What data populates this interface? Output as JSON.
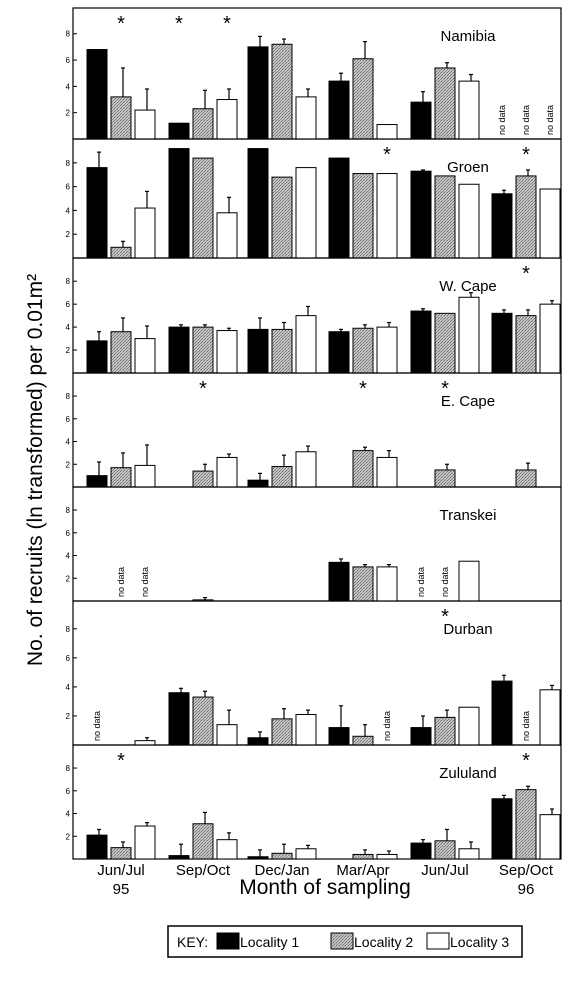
{
  "chart_data": {
    "type": "bar",
    "y_axis_label": "No. of recruits (ln transformed) per 0.01m²",
    "x_axis_label": "Month of sampling",
    "month_labels": [
      {
        "line1": "Jun/Jul",
        "line2": "95"
      },
      {
        "line1": "Sep/Oct",
        "line2": ""
      },
      {
        "line1": "Dec/Jan",
        "line2": ""
      },
      {
        "line1": "Mar/Apr",
        "line2": ""
      },
      {
        "line1": "Jun/Jul",
        "line2": ""
      },
      {
        "line1": "Sep/Oct",
        "line2": "96"
      }
    ],
    "y_ticks": [
      2,
      4,
      6,
      8
    ],
    "ylim": [
      0,
      9.5
    ],
    "no_data_label": "no data",
    "star_label": "*",
    "series": [
      {
        "name": "Locality 1",
        "color": "#000000"
      },
      {
        "name": "Locality 2",
        "color": "#b0b0b0"
      },
      {
        "name": "Locality 3",
        "color": "#ffffff"
      }
    ],
    "panels": [
      {
        "name": "Namibia",
        "values": [
          [
            6.8,
            3.2,
            2.2
          ],
          [
            1.2,
            2.3,
            3.0
          ],
          [
            7.0,
            7.2,
            3.2
          ],
          [
            4.4,
            6.1,
            1.1
          ],
          [
            2.8,
            5.4,
            4.4
          ],
          [
            null,
            null,
            null
          ]
        ],
        "errors": [
          [
            0,
            2.2,
            1.6
          ],
          [
            0,
            1.4,
            0.8
          ],
          [
            0.8,
            0.4,
            0.6
          ],
          [
            0.6,
            1.3,
            0
          ],
          [
            0.8,
            0.4,
            0.5
          ],
          [
            0,
            0,
            0
          ]
        ],
        "stars": [
          1,
          3,
          5
        ],
        "no_data": [
          [
            5,
            0
          ],
          [
            5,
            1
          ],
          [
            5,
            2
          ]
        ]
      },
      {
        "name": "Groen",
        "values": [
          [
            7.6,
            0.9,
            4.2
          ],
          [
            9.2,
            8.4,
            3.8
          ],
          [
            9.2,
            6.8,
            7.6
          ],
          [
            8.4,
            7.1,
            7.1
          ],
          [
            7.3,
            6.9,
            6.2
          ],
          [
            5.4,
            6.9,
            5.8
          ]
        ],
        "errors": [
          [
            1.3,
            0.5,
            1.4
          ],
          [
            0,
            0,
            1.3
          ],
          [
            0,
            0,
            0
          ],
          [
            0,
            0,
            0
          ],
          [
            0.1,
            0,
            0
          ],
          [
            0.3,
            0.5,
            0
          ]
        ],
        "stars": [
          11,
          16
        ],
        "no_data": []
      },
      {
        "name": "W. Cape",
        "values": [
          [
            2.8,
            3.6,
            3.0
          ],
          [
            4.0,
            4.0,
            3.7
          ],
          [
            3.8,
            3.8,
            5.0
          ],
          [
            3.6,
            3.9,
            4.0
          ],
          [
            5.4,
            5.2,
            6.6
          ],
          [
            5.2,
            5.0,
            6.0
          ]
        ],
        "errors": [
          [
            0.8,
            1.2,
            1.1
          ],
          [
            0.2,
            0.2,
            0.2
          ],
          [
            1.0,
            0.6,
            0.8
          ],
          [
            0.2,
            0.3,
            0.4
          ],
          [
            0.2,
            0,
            0.4
          ],
          [
            0.3,
            0.5,
            0.3
          ]
        ],
        "stars": [
          16
        ],
        "no_data": []
      },
      {
        "name": "E. Cape",
        "values": [
          [
            1.0,
            1.7,
            1.9
          ],
          [
            null,
            1.4,
            2.6
          ],
          [
            0.6,
            1.8,
            3.1
          ],
          [
            null,
            3.2,
            2.6
          ],
          [
            null,
            1.5,
            null
          ],
          [
            null,
            1.5,
            null
          ]
        ],
        "errors": [
          [
            1.2,
            1.3,
            1.8
          ],
          [
            0,
            0.6,
            0.3
          ],
          [
            0.6,
            1.0,
            0.5
          ],
          [
            0,
            0.3,
            0.6
          ],
          [
            0,
            0.5,
            0
          ],
          [
            0,
            0.6,
            0
          ]
        ],
        "stars": [
          4,
          10,
          13
        ],
        "no_data": []
      },
      {
        "name": "Transkei",
        "values": [
          [
            null,
            null,
            null
          ],
          [
            null,
            0.1,
            null
          ],
          [
            null,
            null,
            null
          ],
          [
            3.4,
            3.0,
            3.0
          ],
          [
            null,
            null,
            3.5
          ],
          [
            null,
            null,
            null
          ]
        ],
        "errors": [
          [
            0,
            0,
            0
          ],
          [
            0,
            0.2,
            0
          ],
          [
            0,
            0,
            0
          ],
          [
            0.3,
            0.2,
            0.2
          ],
          [
            0,
            0,
            0
          ],
          [
            0,
            0,
            0
          ]
        ],
        "stars": [],
        "no_data": [
          [
            0,
            1
          ],
          [
            0,
            2
          ],
          [
            4,
            0
          ],
          [
            4,
            1
          ]
        ]
      },
      {
        "name": "Durban",
        "values": [
          [
            null,
            null,
            0.3
          ],
          [
            3.6,
            3.3,
            1.4
          ],
          [
            0.5,
            1.8,
            2.1
          ],
          [
            1.2,
            0.6,
            null
          ],
          [
            1.2,
            1.9,
            2.6
          ],
          [
            4.4,
            null,
            3.8
          ]
        ],
        "errors": [
          [
            0,
            0,
            0.2
          ],
          [
            0.3,
            0.4,
            1.0
          ],
          [
            0.4,
            0.7,
            0.3
          ],
          [
            1.5,
            0.8,
            0
          ],
          [
            0.8,
            0.5,
            0
          ],
          [
            0.4,
            0,
            0.3
          ]
        ],
        "stars": [
          13
        ],
        "no_data": [
          [
            0,
            0
          ],
          [
            3,
            2
          ],
          [
            5,
            1
          ]
        ]
      },
      {
        "name": "Zululand",
        "values": [
          [
            2.1,
            1.0,
            2.9
          ],
          [
            0.3,
            3.1,
            1.7
          ],
          [
            0.2,
            0.5,
            0.9
          ],
          [
            null,
            0.4,
            0.4
          ],
          [
            1.4,
            1.6,
            0.9
          ],
          [
            5.3,
            6.1,
            3.9
          ]
        ],
        "errors": [
          [
            0.5,
            0.5,
            0.3
          ],
          [
            1.0,
            1.0,
            0.6
          ],
          [
            0.6,
            0.8,
            0.3
          ],
          [
            0,
            0.4,
            0.3
          ],
          [
            0.3,
            1.0,
            0.6
          ],
          [
            0.3,
            0.3,
            0.5
          ]
        ],
        "stars": [
          1,
          16
        ],
        "no_data": []
      }
    ]
  },
  "key": {
    "prefix": "KEY:",
    "items": [
      "Locality 1",
      "Locality 2",
      "Locality 3"
    ]
  }
}
